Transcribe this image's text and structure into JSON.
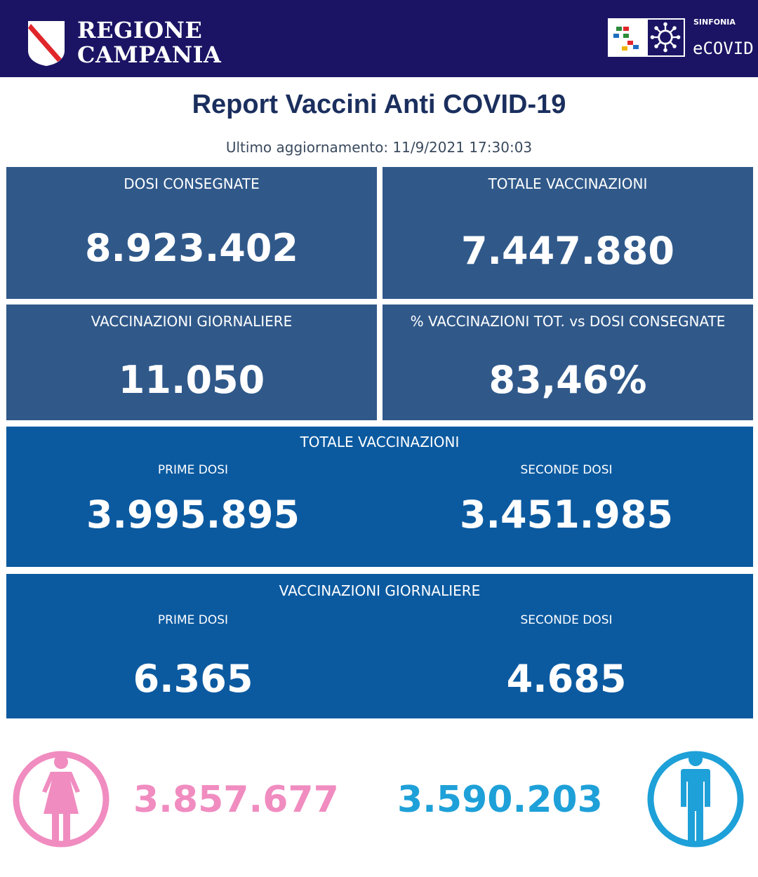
{
  "header": {
    "region_line1": "REGIONE",
    "region_line2": "CAMPANIA",
    "brand_small": "SINFONIA",
    "brand_main": "eCOVID",
    "colors": {
      "header_bg": "#1b1464",
      "shield_red": "#e0262a"
    }
  },
  "title": "Report Vaccini Anti COVID-19",
  "update": "Ultimo aggiornamento: 11/9/2021  17:30:03",
  "cards": {
    "dosi_consegnate": {
      "label": "DOSI  CONSEGNATE",
      "value": "8.923.402"
    },
    "totale_vaccinazioni": {
      "label": "TOTALE VACCINAZIONI",
      "value": "7.447.880"
    },
    "vaccinazioni_giornaliere": {
      "label": "VACCINAZIONI GIORNALIERE",
      "value": "11.050"
    },
    "percentuale": {
      "label": "% VACCINAZIONI TOT. vs DOSI CONSEGNATE",
      "value": "83,46%"
    }
  },
  "totale_breakdown": {
    "label": "TOTALE VACCINAZIONI",
    "prime_label": "PRIME DOSI",
    "prime_value": "3.995.895",
    "seconde_label": "SECONDE DOSI",
    "seconde_value": "3.451.985"
  },
  "giornaliere_breakdown": {
    "label": "VACCINAZIONI GIORNALIERE",
    "prime_label": "PRIME DOSI",
    "prime_value": "6.365",
    "seconde_label": "SECONDE DOSI",
    "seconde_value": "4.685"
  },
  "gender": {
    "female_value": "3.857.677",
    "male_value": "3.590.203",
    "female_icon": "female-person-icon",
    "male_icon": "male-person-icon",
    "female_color": "#f08cc0",
    "male_color": "#1ea0d8"
  }
}
